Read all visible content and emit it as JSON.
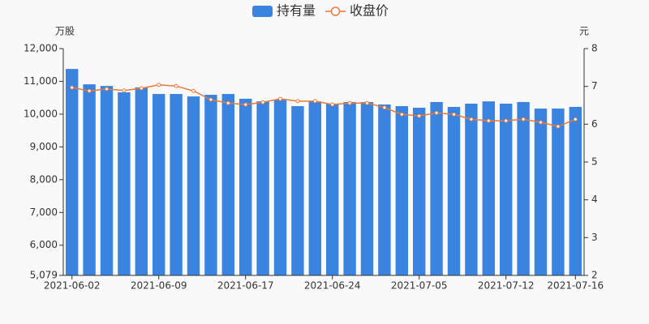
{
  "chart_data": {
    "type": "bar_line",
    "y_label": "万股",
    "y2_label": "元",
    "categories": [
      "2021-06-02",
      null,
      null,
      null,
      null,
      "2021-06-09",
      null,
      null,
      null,
      null,
      "2021-06-17",
      null,
      null,
      null,
      null,
      "2021-06-24",
      null,
      null,
      null,
      null,
      "2021-07-05",
      null,
      null,
      null,
      null,
      "2021-07-12",
      null,
      null,
      null,
      "2021-07-16"
    ],
    "series": [
      {
        "name": "持有量",
        "type": "bar",
        "color": "#3a84e0",
        "values": [
          11380,
          10910,
          10860,
          10665,
          10815,
          10615,
          10615,
          10540,
          10590,
          10615,
          10470,
          10390,
          10440,
          10245,
          10390,
          10320,
          10370,
          10370,
          10295,
          10245,
          10195,
          10370,
          10220,
          10320,
          10390,
          10320,
          10370,
          10170,
          10170,
          10220
        ]
      },
      {
        "name": "收盘价",
        "type": "line",
        "axis": "y2",
        "color": "#e8793a",
        "values": [
          6.97,
          6.88,
          6.93,
          6.89,
          6.95,
          7.04,
          7.01,
          6.88,
          6.65,
          6.56,
          6.52,
          6.58,
          6.67,
          6.61,
          6.61,
          6.52,
          6.56,
          6.56,
          6.44,
          6.26,
          6.22,
          6.3,
          6.26,
          6.13,
          6.09,
          6.09,
          6.13,
          6.05,
          5.94,
          6.13
        ]
      }
    ],
    "ylim": [
      5079,
      12000
    ],
    "yticks": [
      {
        "value": 5079,
        "label": "5,079"
      },
      {
        "value": 6000,
        "label": "6,000"
      },
      {
        "value": 7000,
        "label": "7,000"
      },
      {
        "value": 8000,
        "label": "8,000"
      },
      {
        "value": 9000,
        "label": "9,000"
      },
      {
        "value": 10000,
        "label": "10,000"
      },
      {
        "value": 11000,
        "label": "11,000"
      },
      {
        "value": 12000,
        "label": "12,000"
      }
    ],
    "y2lim": [
      2,
      8
    ],
    "y2ticks": [
      2,
      3,
      4,
      5,
      6,
      7,
      8
    ],
    "legend": "top"
  }
}
